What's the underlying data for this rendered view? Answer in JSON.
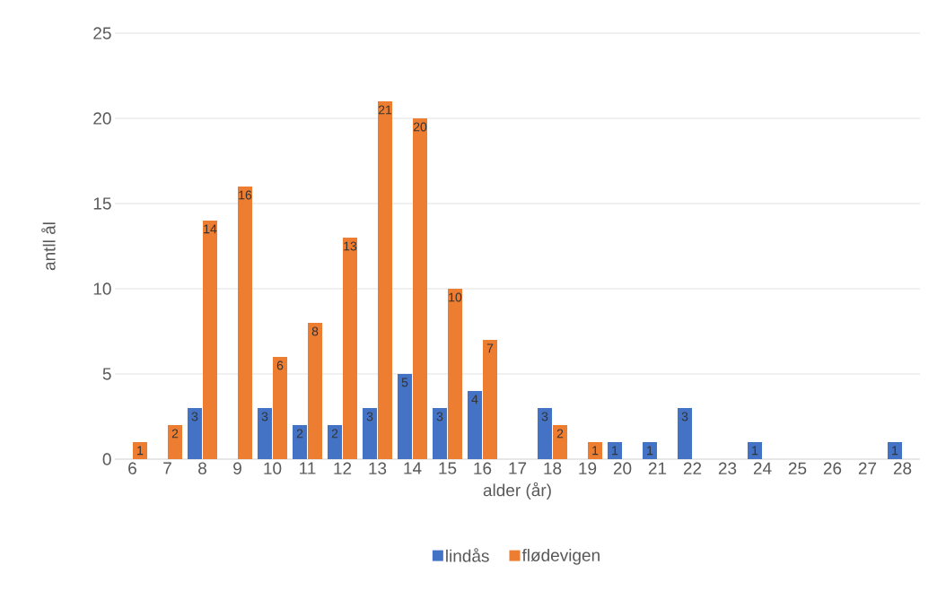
{
  "chart_data": {
    "type": "bar",
    "xlabel": "alder (år)",
    "ylabel": "antll ål",
    "categories": [
      "6",
      "7",
      "8",
      "9",
      "10",
      "11",
      "12",
      "13",
      "14",
      "15",
      "16",
      "17",
      "18",
      "19",
      "20",
      "21",
      "22",
      "23",
      "24",
      "25",
      "26",
      "27",
      "28"
    ],
    "series": [
      {
        "name": "lindås",
        "color": "#4472c4",
        "values": [
          null,
          null,
          3,
          null,
          3,
          2,
          2,
          3,
          5,
          3,
          4,
          null,
          3,
          null,
          1,
          1,
          3,
          null,
          1,
          null,
          null,
          null,
          1
        ]
      },
      {
        "name": "flødevigen",
        "color": "#ed7d31",
        "values": [
          1,
          2,
          14,
          16,
          6,
          8,
          13,
          21,
          20,
          10,
          7,
          null,
          2,
          1,
          null,
          null,
          null,
          null,
          null,
          null,
          null,
          null,
          null
        ]
      }
    ],
    "ylim": [
      0,
      25
    ],
    "yticks": [
      0,
      5,
      10,
      15,
      20,
      25
    ],
    "grid": "y",
    "legend": "bottom",
    "data_labels": true
  }
}
